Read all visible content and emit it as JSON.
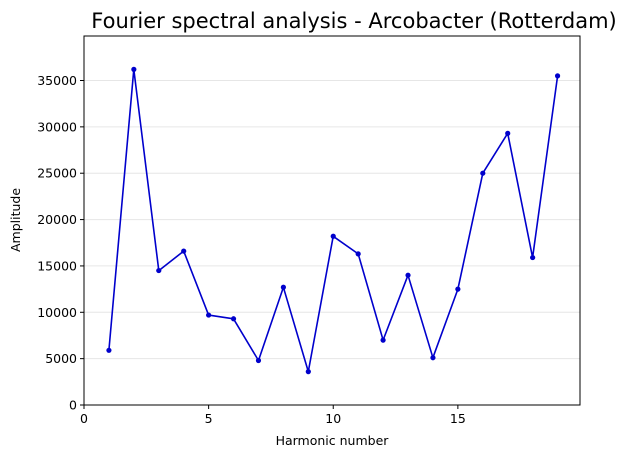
{
  "chart_data": {
    "type": "line",
    "title": "Fourier spectral analysis - Arcobacter (Rotterdam)",
    "xlabel": "Harmonic number",
    "ylabel": "Amplitude",
    "xlim": [
      0,
      19.9
    ],
    "ylim": [
      0,
      39800
    ],
    "xticks": [
      0,
      5,
      10,
      15
    ],
    "yticks": [
      0,
      5000,
      10000,
      15000,
      20000,
      25000,
      30000,
      35000
    ],
    "grid": "horizontal",
    "legend": "none",
    "series": [
      {
        "color": "#0000cc",
        "marker": "dot",
        "x": [
          1,
          2,
          3,
          4,
          5,
          6,
          7,
          8,
          9,
          10,
          11,
          12,
          13,
          14,
          15,
          16,
          17,
          18,
          19
        ],
        "y": [
          5900,
          36200,
          14500,
          16600,
          9700,
          9300,
          4800,
          12700,
          3600,
          18200,
          16300,
          7000,
          14000,
          5100,
          12500,
          25000,
          29300,
          15900,
          35500
        ]
      }
    ]
  }
}
